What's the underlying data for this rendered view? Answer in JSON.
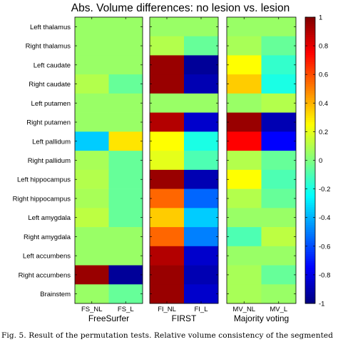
{
  "chart_data": {
    "type": "heatmap",
    "title": "Abs. Volume differences: no lesion vs. lesion",
    "rows": [
      "Left thalamus",
      "Right thalamus",
      "Left caudate",
      "Right caudate",
      "Left putamen",
      "Right putamen",
      "Left pallidum",
      "Right pallidum",
      "Left hippocampus",
      "Right hippocampus",
      "Left amygdala",
      "Right amygdala",
      "Left accumbens",
      "Right accumbens",
      "Brainstem"
    ],
    "panels": [
      {
        "name": "FreeSurfer",
        "columns": [
          "FS_NL",
          "FS_L"
        ],
        "values": [
          [
            0.05,
            0.05
          ],
          [
            0.05,
            0.05
          ],
          [
            0.05,
            0.05
          ],
          [
            0.1,
            -0.05
          ],
          [
            0.05,
            0.05
          ],
          [
            0.05,
            0.05
          ],
          [
            -0.35,
            0.3
          ],
          [
            0.08,
            -0.05
          ],
          [
            0.1,
            -0.05
          ],
          [
            0.08,
            -0.05
          ],
          [
            0.12,
            -0.05
          ],
          [
            0.05,
            0.05
          ],
          [
            0.05,
            0.05
          ],
          [
            0.95,
            -0.95
          ],
          [
            0.05,
            -0.05
          ]
        ]
      },
      {
        "name": "FIRST",
        "columns": [
          "FI_NL",
          "FI_L"
        ],
        "values": [
          [
            0.05,
            0.05
          ],
          [
            0.1,
            -0.05
          ],
          [
            0.95,
            -0.95
          ],
          [
            0.95,
            -0.9
          ],
          [
            0.05,
            0.05
          ],
          [
            0.9,
            -0.85
          ],
          [
            0.25,
            -0.2
          ],
          [
            0.2,
            -0.1
          ],
          [
            0.95,
            -0.9
          ],
          [
            0.55,
            -0.55
          ],
          [
            0.35,
            -0.35
          ],
          [
            0.55,
            -0.5
          ],
          [
            0.9,
            -0.85
          ],
          [
            0.95,
            -0.9
          ],
          [
            0.95,
            -0.85
          ]
        ]
      },
      {
        "name": "Majority voting",
        "columns": [
          "MV_NL",
          "MV_L"
        ],
        "values": [
          [
            0.05,
            0.05
          ],
          [
            0.08,
            -0.05
          ],
          [
            0.25,
            -0.15
          ],
          [
            0.35,
            -0.2
          ],
          [
            0.05,
            0.1
          ],
          [
            0.95,
            -0.9
          ],
          [
            0.75,
            -0.75
          ],
          [
            0.1,
            -0.05
          ],
          [
            0.25,
            -0.1
          ],
          [
            0.1,
            -0.05
          ],
          [
            0.05,
            0.05
          ],
          [
            -0.1,
            0.12
          ],
          [
            0.05,
            0.05
          ],
          [
            0.08,
            -0.05
          ],
          [
            0.08,
            0.05
          ]
        ]
      }
    ],
    "colorbar": {
      "min": -1,
      "max": 1,
      "ticks": [
        "1",
        "0.8",
        "0.6",
        "0.4",
        "0.2",
        "0",
        "-0.2",
        "-0.4",
        "-0.6",
        "-0.8",
        "-1"
      ]
    },
    "colormap": "jet"
  },
  "caption": "Fig. 5. Result of the permutation tests. Relative volume consistency of the segmented"
}
